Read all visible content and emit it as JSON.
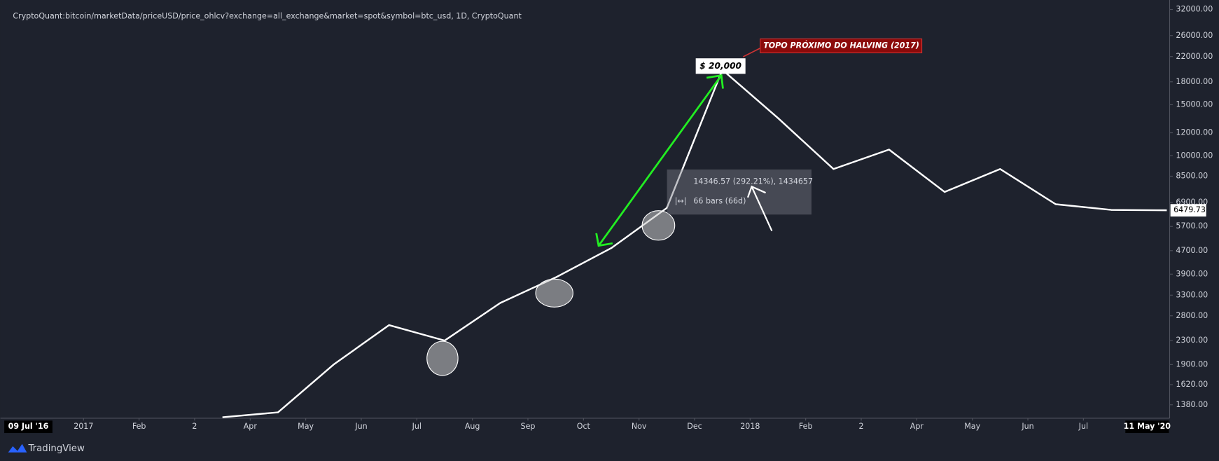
{
  "chart_data": {
    "type": "line",
    "title": "CryptoQuant:bitcoin/marketData/priceUSD/price_ohlcv?exchange=all_exchange&market=spot&symbol=btc_usd, 1D, CryptoQuant",
    "x": [
      "2017-03",
      "2017-04",
      "2017-05",
      "2017-06",
      "2017-07",
      "2017-08",
      "2017-09",
      "2017-10",
      "2017-11",
      "2017-12",
      "2018-01",
      "2018-02",
      "2018-03",
      "2018-04",
      "2018-05",
      "2018-06",
      "2018-07",
      "2018-08"
    ],
    "values": [
      1250,
      1300,
      1900,
      2600,
      2300,
      3100,
      3800,
      4800,
      6600,
      19800,
      13500,
      9000,
      10500,
      7500,
      9000,
      6800,
      6500,
      6479.73
    ],
    "color": "#ffffff",
    "log_scale": true,
    "ylim": [
      1240,
      34500
    ],
    "yticks": [
      {
        "value": 1380,
        "label": "1380.00"
      },
      {
        "value": 1620,
        "label": "1620.00"
      },
      {
        "value": 1900,
        "label": "1900.00"
      },
      {
        "value": 2300,
        "label": "2300.00"
      },
      {
        "value": 2800,
        "label": "2800.00"
      },
      {
        "value": 3300,
        "label": "3300.00"
      },
      {
        "value": 3900,
        "label": "3900.00"
      },
      {
        "value": 4700,
        "label": "4700.00"
      },
      {
        "value": 5700,
        "label": "5700.00"
      },
      {
        "value": 6900,
        "label": "6900.00"
      },
      {
        "value": 8500,
        "label": "8500.00"
      },
      {
        "value": 10000,
        "label": "10000.00"
      },
      {
        "value": 12000,
        "label": "12000.00"
      },
      {
        "value": 15000,
        "label": "15000.00"
      },
      {
        "value": 18000,
        "label": "18000.00"
      },
      {
        "value": 22000,
        "label": "22000.00"
      },
      {
        "value": 26000,
        "label": "26000.00"
      },
      {
        "value": 32000,
        "label": "32000.00"
      }
    ],
    "xlim": [
      "2016-11",
      "2018-09"
    ],
    "xticks": [
      {
        "value": "2017-01",
        "label": "2017"
      },
      {
        "value": "2017-02",
        "label": "Feb"
      },
      {
        "value": "2017-03",
        "label": "2"
      },
      {
        "value": "2017-04",
        "label": "Apr"
      },
      {
        "value": "2017-05",
        "label": "May"
      },
      {
        "value": "2017-06",
        "label": "Jun"
      },
      {
        "value": "2017-07",
        "label": "Jul"
      },
      {
        "value": "2017-08",
        "label": "Aug"
      },
      {
        "value": "2017-09",
        "label": "Sep"
      },
      {
        "value": "2017-10",
        "label": "Oct"
      },
      {
        "value": "2017-11",
        "label": "Nov"
      },
      {
        "value": "2017-12",
        "label": "Dec"
      },
      {
        "value": "2018-01",
        "label": "2018"
      },
      {
        "value": "2018-02",
        "label": "Feb"
      },
      {
        "value": "2018-03",
        "label": "2"
      },
      {
        "value": "2018-04",
        "label": "Apr"
      },
      {
        "value": "2018-05",
        "label": "May"
      },
      {
        "value": "2018-06",
        "label": "Jun"
      },
      {
        "value": "2018-07",
        "label": "Jul"
      }
    ],
    "cursor_labels": [
      "09 Jul '16",
      "11 May '20"
    ],
    "annotations": {
      "price_label": "$ 20,000",
      "halving_note": "TOPO PRÓXIMO DO HALVING (2017)",
      "measure_change": "14346.57 (292.21%), 1434657",
      "measure_bars": "66 bars (66d)"
    }
  },
  "branding": "TradingView"
}
